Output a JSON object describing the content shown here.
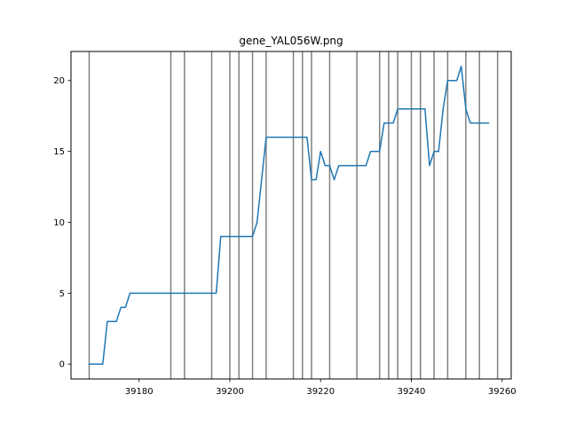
{
  "chart_data": {
    "type": "line",
    "title": "gene_YAL056W.png",
    "xlabel": "",
    "ylabel": "",
    "xlim": [
      39165,
      39262
    ],
    "ylim": [
      -1.05,
      22.05
    ],
    "grid": false,
    "x_ticks": [
      39180,
      39200,
      39220,
      39240,
      39260
    ],
    "y_ticks": [
      0,
      5,
      10,
      15,
      20
    ],
    "vertical_lines": [
      39169,
      39187,
      39190,
      39196,
      39200,
      39202,
      39205,
      39208,
      39214,
      39216,
      39218,
      39222,
      39228,
      39233,
      39235,
      39237,
      39240,
      39242,
      39245,
      39248,
      39252,
      39255,
      39259
    ],
    "series": [
      {
        "color": "#1f77b4",
        "points": [
          [
            39169,
            0
          ],
          [
            39172,
            0
          ],
          [
            39173,
            3
          ],
          [
            39175,
            3
          ],
          [
            39176,
            4
          ],
          [
            39177,
            4
          ],
          [
            39178,
            5
          ],
          [
            39196,
            5
          ],
          [
            39197,
            5
          ],
          [
            39198,
            9
          ],
          [
            39204,
            9
          ],
          [
            39205,
            9
          ],
          [
            39206,
            10
          ],
          [
            39207,
            13
          ],
          [
            39208,
            16
          ],
          [
            39216,
            16
          ],
          [
            39217,
            16
          ],
          [
            39218,
            13
          ],
          [
            39219,
            13
          ],
          [
            39220,
            15
          ],
          [
            39221,
            14
          ],
          [
            39222,
            14
          ],
          [
            39223,
            13
          ],
          [
            39224,
            14
          ],
          [
            39230,
            14
          ],
          [
            39231,
            15
          ],
          [
            39233,
            15
          ],
          [
            39234,
            17
          ],
          [
            39236,
            17
          ],
          [
            39237,
            18
          ],
          [
            39243,
            18
          ],
          [
            39244,
            14
          ],
          [
            39245,
            15
          ],
          [
            39246,
            15
          ],
          [
            39247,
            18
          ],
          [
            39248,
            20
          ],
          [
            39250,
            20
          ],
          [
            39251,
            21
          ],
          [
            39252,
            18
          ],
          [
            39253,
            17
          ],
          [
            39257,
            17
          ]
        ]
      }
    ],
    "vline_color": "#808080",
    "line_color": "#1f77b4"
  }
}
